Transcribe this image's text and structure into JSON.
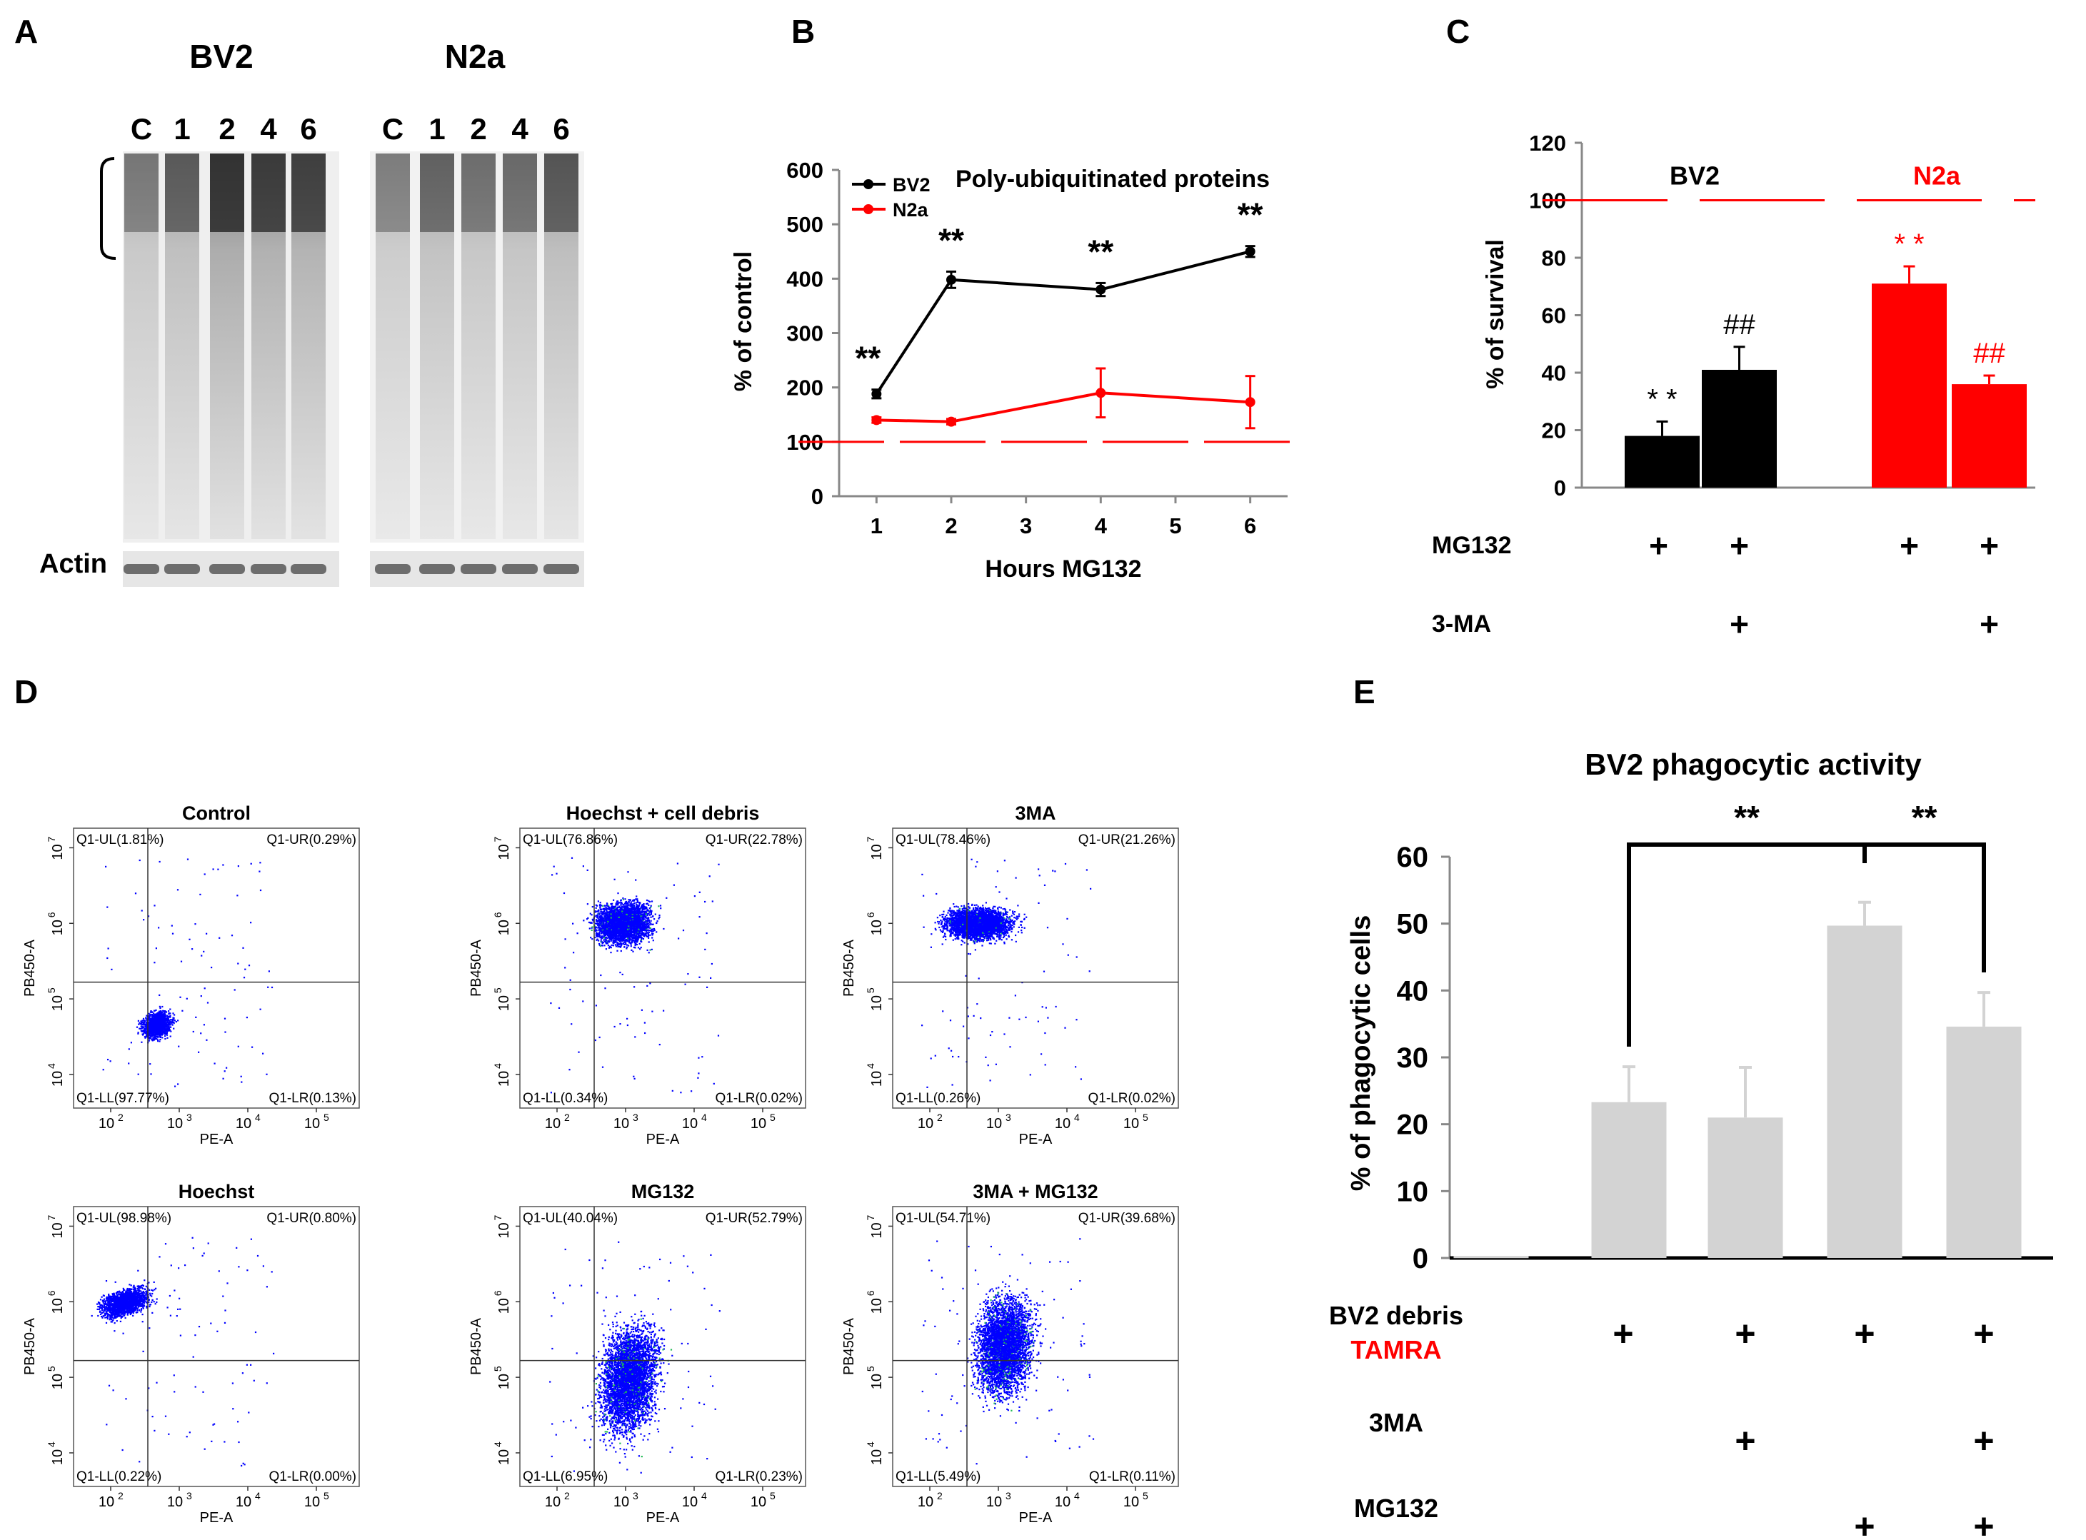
{
  "panel_letters": [
    "A",
    "B",
    "C",
    "D",
    "E"
  ],
  "colors": {
    "bv2": "#000000",
    "n2a": "#ff0000",
    "bar_e": "#d3d3d3",
    "flow_dots": "#0000ff",
    "flow_green": "#22bb55"
  },
  "panel_a": {
    "groups": [
      {
        "name": "BV2",
        "lanes": [
          "C",
          "1",
          "2",
          "4",
          "6"
        ]
      },
      {
        "name": "N2a",
        "lanes": [
          "C",
          "1",
          "2",
          "4",
          "6"
        ]
      }
    ],
    "loading_label": "Actin"
  },
  "chart_data": [
    {
      "panel": "B",
      "type": "line",
      "title": "Poly-ubiquitinated proteins",
      "xlabel": "Hours MG132",
      "ylabel": "% of control",
      "xlim": [
        0.5,
        6.5
      ],
      "ylim": [
        0,
        600
      ],
      "xticks": [
        1,
        2,
        3,
        4,
        5,
        6
      ],
      "yticks": [
        0,
        100,
        200,
        300,
        400,
        500,
        600
      ],
      "reference_line": 100,
      "legend": "top-left",
      "series": [
        {
          "name": "BV2",
          "color": "#000000",
          "x": [
            1,
            2,
            4,
            6
          ],
          "y": [
            188,
            398,
            380,
            450
          ],
          "err": [
            8,
            15,
            12,
            10
          ],
          "stars": [
            "**",
            "**",
            "**",
            "**"
          ]
        },
        {
          "name": "N2a",
          "color": "#ff0000",
          "x": [
            1,
            2,
            4,
            6
          ],
          "y": [
            140,
            137,
            190,
            173
          ],
          "err": [
            5,
            5,
            45,
            48
          ],
          "stars": []
        }
      ]
    },
    {
      "panel": "C",
      "type": "bar",
      "ylabel": "% of survival",
      "ylim": [
        0,
        120
      ],
      "yticks": [
        0,
        20,
        40,
        60,
        80,
        100,
        120
      ],
      "reference_line": 100,
      "group_labels": [
        "BV2",
        "N2a"
      ],
      "bars": [
        {
          "group": "BV2",
          "value": 18,
          "err": 5,
          "color": "#000000",
          "mark": "* *",
          "mark_color": "#000000"
        },
        {
          "group": "BV2",
          "value": 41,
          "err": 8,
          "color": "#000000",
          "mark": "##",
          "mark_color": "#000000"
        },
        {
          "group": "N2a",
          "value": 71,
          "err": 6,
          "color": "#ff0000",
          "mark": "* *",
          "mark_color": "#ff0000"
        },
        {
          "group": "N2a",
          "value": 36,
          "err": 3,
          "color": "#ff0000",
          "mark": "##",
          "mark_color": "#ff0000"
        }
      ],
      "treatments": [
        {
          "label": "MG132",
          "marks": [
            "+",
            "+",
            "+",
            "+"
          ]
        },
        {
          "label": "3-MA",
          "marks": [
            "",
            "+",
            "",
            "+"
          ]
        }
      ]
    },
    {
      "panel": "E",
      "type": "bar",
      "title": "BV2 phagocytic activity",
      "ylabel": "% of phagocytic cells",
      "ylim": [
        0,
        60
      ],
      "yticks": [
        0,
        10,
        20,
        30,
        40,
        50,
        60
      ],
      "values": [
        0.3,
        23.3,
        21,
        49.7,
        34.6
      ],
      "errors": [
        0,
        5.3,
        7.5,
        3.5,
        5.1
      ],
      "color": "#d3d3d3",
      "significance": [
        {
          "from": 1,
          "to": 3,
          "label": "**"
        },
        {
          "from": 3,
          "to": 4,
          "label": "**"
        }
      ],
      "treatments": [
        {
          "label": "BV2 debris",
          "sublabel": "TAMRA",
          "marks": [
            "",
            "+",
            "+",
            "+",
            "+"
          ]
        },
        {
          "label": "3MA",
          "sublabel": "",
          "marks": [
            "",
            "",
            "+",
            "",
            "+"
          ]
        },
        {
          "label": "MG132",
          "sublabel": "",
          "marks": [
            "",
            "",
            "",
            "+",
            "+"
          ]
        }
      ]
    }
  ],
  "panel_d": {
    "x_axis_label": "PE-A",
    "y_axis_label": "PB450-A",
    "x_ticks": [
      "10",
      "10",
      "10",
      "10"
    ],
    "x_exponents": [
      "2",
      "3",
      "4",
      "5"
    ],
    "y_ticks": [
      "10",
      "10",
      "10",
      "10"
    ],
    "y_exponents": [
      "4",
      "5",
      "6",
      "7"
    ],
    "plots": [
      {
        "title": "Control",
        "UL": "Q1-UL(1.81%)",
        "UR": "Q1-UR(0.29%)",
        "LL": "Q1-LL(97.77%)",
        "LR": "Q1-LR(0.13%)",
        "ul_pct": 1.81,
        "ur_pct": 0.29,
        "ll_pct": 97.77,
        "lr_pct": 0.13
      },
      {
        "title": "Hoechst + cell debris",
        "UL": "Q1-UL(76.86%)",
        "UR": "Q1-UR(22.78%)",
        "LL": "Q1-LL(0.34%)",
        "LR": "Q1-LR(0.02%)",
        "ul_pct": 76.86,
        "ur_pct": 22.78,
        "ll_pct": 0.34,
        "lr_pct": 0.02
      },
      {
        "title": "3MA",
        "UL": "Q1-UL(78.46%)",
        "UR": "Q1-UR(21.26%)",
        "LL": "Q1-LL(0.26%)",
        "LR": "Q1-LR(0.02%)",
        "ul_pct": 78.46,
        "ur_pct": 21.26,
        "ll_pct": 0.26,
        "lr_pct": 0.02
      },
      {
        "title": "Hoechst",
        "UL": "Q1-UL(98.98%)",
        "UR": "Q1-UR(0.80%)",
        "LL": "Q1-LL(0.22%)",
        "LR": "Q1-LR(0.00%)",
        "ul_pct": 98.98,
        "ur_pct": 0.8,
        "ll_pct": 0.22,
        "lr_pct": 0.0
      },
      {
        "title": "MG132",
        "UL": "Q1-UL(40.04%)",
        "UR": "Q1-UR(52.79%)",
        "LL": "Q1-LL(6.95%)",
        "LR": "Q1-LR(0.23%)",
        "ul_pct": 40.04,
        "ur_pct": 52.79,
        "ll_pct": 6.95,
        "lr_pct": 0.23
      },
      {
        "title": "3MA + MG132",
        "UL": "Q1-UL(54.71%)",
        "UR": "Q1-UR(39.68%)",
        "LL": "Q1-LL(5.49%)",
        "LR": "Q1-LR(0.11%)",
        "ul_pct": 54.71,
        "ur_pct": 39.68,
        "ll_pct": 5.49,
        "lr_pct": 0.11
      }
    ]
  }
}
